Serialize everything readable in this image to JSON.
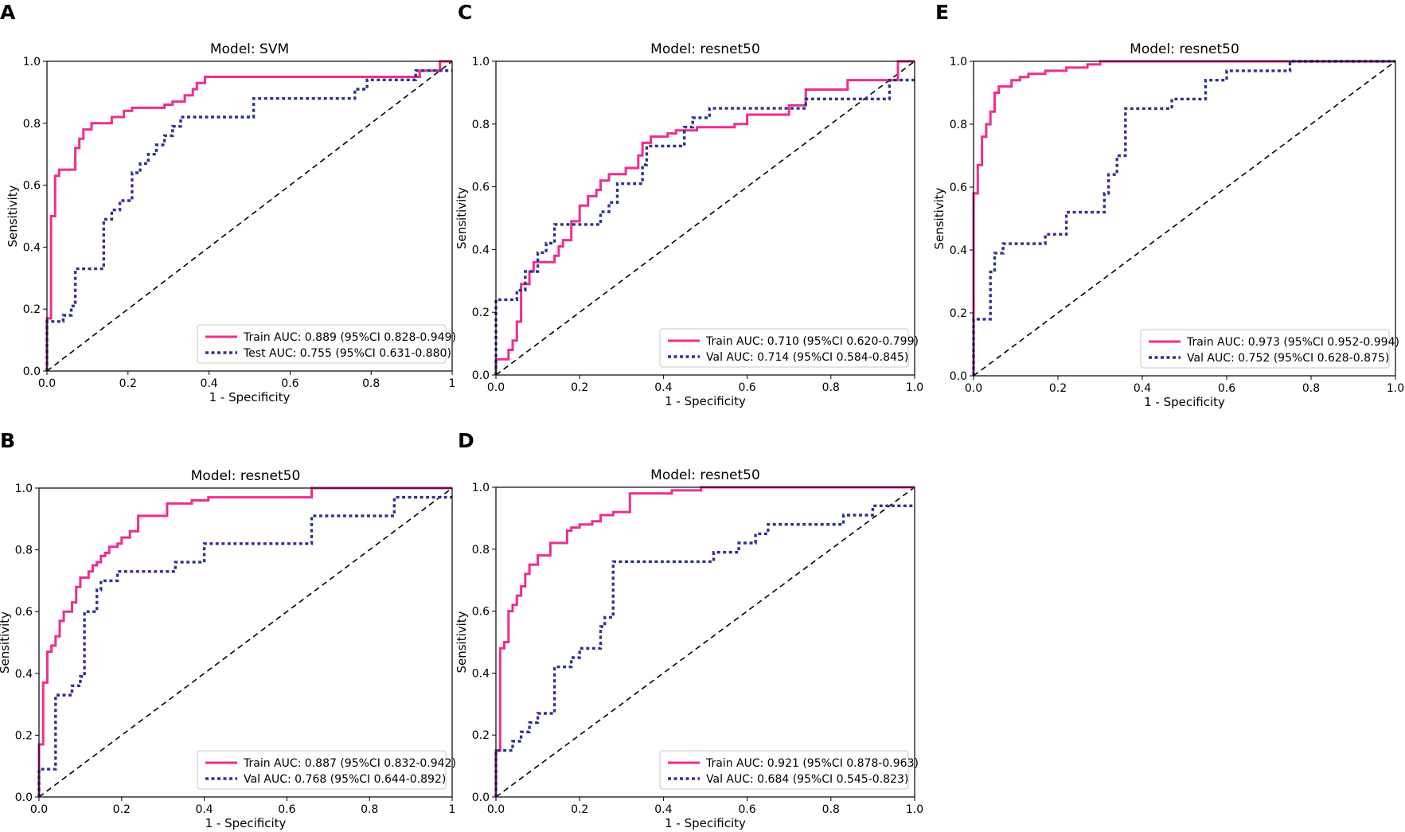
{
  "figure": {
    "panel_count": 5
  },
  "chart_data": [
    {
      "panel": "A",
      "type": "line",
      "title": "Model: SVM",
      "xlabel": "1 - Specificity",
      "ylabel": "Sensitivity",
      "xlim": [
        0,
        1
      ],
      "ylim": [
        0,
        1
      ],
      "xticks": [
        "0.0",
        "0.2",
        "0.4",
        "0.6",
        "0.8",
        "1"
      ],
      "yticks": [
        "0.0",
        "0.2",
        "0.4",
        "0.6",
        "0.8",
        "1.0"
      ],
      "legend_position": "lower-right",
      "series": [
        {
          "name": "Train AUC: 0.889 (95%CI 0.828-0.949)",
          "style": "solid",
          "color": "#ee2e8f",
          "x": [
            0,
            0,
            0.01,
            0.01,
            0.02,
            0.02,
            0.03,
            0.03,
            0.07,
            0.07,
            0.08,
            0.08,
            0.09,
            0.09,
            0.11,
            0.11,
            0.16,
            0.16,
            0.19,
            0.19,
            0.21,
            0.21,
            0.29,
            0.29,
            0.31,
            0.31,
            0.34,
            0.34,
            0.36,
            0.36,
            0.37,
            0.37,
            0.39,
            0.39,
            0.92,
            0.92,
            0.97,
            0.97,
            1
          ],
          "y": [
            0,
            0.17,
            0.17,
            0.5,
            0.5,
            0.63,
            0.63,
            0.65,
            0.65,
            0.72,
            0.72,
            0.75,
            0.75,
            0.78,
            0.78,
            0.8,
            0.8,
            0.82,
            0.82,
            0.84,
            0.84,
            0.85,
            0.85,
            0.86,
            0.86,
            0.87,
            0.87,
            0.89,
            0.89,
            0.91,
            0.91,
            0.93,
            0.93,
            0.95,
            0.95,
            0.97,
            0.97,
            1,
            1
          ]
        },
        {
          "name": "Test AUC: 0.755 (95%CI 0.631-0.880)",
          "style": "dotted",
          "color": "#2e3589",
          "x": [
            0,
            0,
            0.04,
            0.04,
            0.06,
            0.06,
            0.07,
            0.07,
            0.14,
            0.14,
            0.16,
            0.16,
            0.18,
            0.18,
            0.21,
            0.21,
            0.23,
            0.23,
            0.25,
            0.25,
            0.27,
            0.27,
            0.29,
            0.29,
            0.31,
            0.31,
            0.33,
            0.33,
            0.51,
            0.51,
            0.76,
            0.76,
            0.79,
            0.79,
            0.91,
            0.91,
            0.93,
            0.93,
            1
          ],
          "y": [
            0,
            0.16,
            0.16,
            0.18,
            0.18,
            0.21,
            0.21,
            0.33,
            0.33,
            0.49,
            0.49,
            0.52,
            0.52,
            0.55,
            0.55,
            0.64,
            0.64,
            0.67,
            0.67,
            0.7,
            0.7,
            0.73,
            0.73,
            0.76,
            0.76,
            0.79,
            0.79,
            0.82,
            0.82,
            0.88,
            0.88,
            0.91,
            0.91,
            0.94,
            0.94,
            0.97,
            0.97,
            0.97,
            0.97
          ]
        }
      ]
    },
    {
      "panel": "B",
      "type": "line",
      "title": "Model: resnet50",
      "xlabel": "1 - Specificity",
      "ylabel": "Sensitivity",
      "xlim": [
        0,
        1
      ],
      "ylim": [
        0,
        1
      ],
      "xticks": [
        "0.0",
        "0.2",
        "0.4",
        "0.6",
        "0.8",
        "1"
      ],
      "yticks": [
        "0.0",
        "0.2",
        "0.4",
        "0.6",
        "0.8",
        "1.0"
      ],
      "legend_position": "lower-right",
      "series": [
        {
          "name": "Train AUC: 0.887 (95%CI 0.832-0.942)",
          "style": "solid",
          "color": "#ee2e8f",
          "x": [
            0,
            0,
            0.01,
            0.01,
            0.02,
            0.02,
            0.03,
            0.03,
            0.04,
            0.04,
            0.05,
            0.05,
            0.06,
            0.06,
            0.08,
            0.08,
            0.09,
            0.09,
            0.1,
            0.1,
            0.12,
            0.12,
            0.13,
            0.13,
            0.14,
            0.14,
            0.15,
            0.15,
            0.16,
            0.16,
            0.17,
            0.17,
            0.19,
            0.19,
            0.2,
            0.2,
            0.22,
            0.22,
            0.24,
            0.24,
            0.31,
            0.31,
            0.37,
            0.37,
            0.41,
            0.41,
            0.66,
            0.66,
            0.87,
            0.87,
            1
          ],
          "y": [
            0,
            0.17,
            0.17,
            0.37,
            0.37,
            0.47,
            0.47,
            0.49,
            0.49,
            0.52,
            0.52,
            0.57,
            0.57,
            0.6,
            0.6,
            0.63,
            0.63,
            0.68,
            0.68,
            0.71,
            0.71,
            0.73,
            0.73,
            0.75,
            0.75,
            0.76,
            0.76,
            0.78,
            0.78,
            0.79,
            0.79,
            0.81,
            0.81,
            0.82,
            0.82,
            0.84,
            0.84,
            0.86,
            0.86,
            0.91,
            0.91,
            0.95,
            0.95,
            0.96,
            0.96,
            0.97,
            0.97,
            1,
            1,
            1,
            1
          ]
        },
        {
          "name": "Val AUC: 0.768 (95%CI 0.644-0.892)",
          "style": "dotted",
          "color": "#2e3589",
          "x": [
            0,
            0,
            0.04,
            0.04,
            0.08,
            0.08,
            0.1,
            0.1,
            0.11,
            0.11,
            0.14,
            0.14,
            0.15,
            0.15,
            0.19,
            0.19,
            0.33,
            0.33,
            0.4,
            0.4,
            0.66,
            0.66,
            0.86,
            0.86,
            1
          ],
          "y": [
            0,
            0.09,
            0.09,
            0.33,
            0.33,
            0.36,
            0.36,
            0.39,
            0.39,
            0.6,
            0.6,
            0.67,
            0.67,
            0.7,
            0.7,
            0.73,
            0.73,
            0.76,
            0.76,
            0.82,
            0.82,
            0.91,
            0.91,
            0.97,
            0.97
          ]
        }
      ]
    },
    {
      "panel": "C",
      "type": "line",
      "title": "Model: resnet50",
      "xlabel": "1 - Specificity",
      "ylabel": "Sensitivity",
      "xlim": [
        0,
        1
      ],
      "ylim": [
        0,
        1
      ],
      "xticks": [
        "0.0",
        "0.2",
        "0.4",
        "0.6",
        "0.8",
        "1.0"
      ],
      "yticks": [
        "0.0",
        "0.2",
        "0.4",
        "0.6",
        "0.8",
        "1.0"
      ],
      "legend_position": "lower-right",
      "series": [
        {
          "name": "Train AUC: 0.710 (95%CI 0.620-0.799)",
          "style": "solid",
          "color": "#ee2e8f",
          "x": [
            0,
            0,
            0.03,
            0.03,
            0.04,
            0.04,
            0.05,
            0.05,
            0.06,
            0.06,
            0.08,
            0.08,
            0.09,
            0.09,
            0.14,
            0.14,
            0.15,
            0.15,
            0.16,
            0.16,
            0.18,
            0.18,
            0.2,
            0.2,
            0.22,
            0.22,
            0.24,
            0.24,
            0.25,
            0.25,
            0.27,
            0.27,
            0.31,
            0.31,
            0.34,
            0.34,
            0.35,
            0.35,
            0.37,
            0.37,
            0.41,
            0.41,
            0.43,
            0.43,
            0.48,
            0.48,
            0.57,
            0.57,
            0.6,
            0.6,
            0.7,
            0.7,
            0.74,
            0.74,
            0.84,
            0.84,
            0.96,
            0.96,
            1
          ],
          "y": [
            0,
            0.05,
            0.05,
            0.08,
            0.08,
            0.11,
            0.11,
            0.17,
            0.17,
            0.29,
            0.29,
            0.33,
            0.33,
            0.36,
            0.36,
            0.38,
            0.38,
            0.41,
            0.41,
            0.43,
            0.43,
            0.49,
            0.49,
            0.54,
            0.54,
            0.57,
            0.57,
            0.59,
            0.59,
            0.62,
            0.62,
            0.64,
            0.64,
            0.66,
            0.66,
            0.7,
            0.7,
            0.74,
            0.74,
            0.76,
            0.76,
            0.77,
            0.77,
            0.78,
            0.78,
            0.79,
            0.79,
            0.8,
            0.8,
            0.83,
            0.83,
            0.86,
            0.86,
            0.91,
            0.91,
            0.94,
            0.94,
            1,
            1
          ]
        },
        {
          "name": "Val AUC: 0.714 (95%CI 0.584-0.845)",
          "style": "dotted",
          "color": "#2e3589",
          "x": [
            0,
            0,
            0.05,
            0.05,
            0.07,
            0.07,
            0.1,
            0.1,
            0.12,
            0.12,
            0.14,
            0.14,
            0.25,
            0.25,
            0.27,
            0.27,
            0.29,
            0.29,
            0.35,
            0.35,
            0.36,
            0.36,
            0.45,
            0.45,
            0.47,
            0.47,
            0.51,
            0.51,
            0.74,
            0.74,
            0.94,
            0.94,
            1
          ],
          "y": [
            0,
            0.24,
            0.24,
            0.27,
            0.27,
            0.33,
            0.33,
            0.39,
            0.39,
            0.42,
            0.42,
            0.48,
            0.48,
            0.52,
            0.52,
            0.55,
            0.55,
            0.61,
            0.61,
            0.67,
            0.67,
            0.73,
            0.73,
            0.79,
            0.79,
            0.82,
            0.82,
            0.85,
            0.85,
            0.88,
            0.88,
            0.94,
            0.94
          ]
        }
      ]
    },
    {
      "panel": "D",
      "type": "line",
      "title": "Model: resnet50",
      "xlabel": "1 - Specificity",
      "ylabel": "Sensitivity",
      "xlim": [
        0,
        1
      ],
      "ylim": [
        0,
        1
      ],
      "xticks": [
        "0.0",
        "0.2",
        "0.4",
        "0.6",
        "0.8",
        "1.0"
      ],
      "yticks": [
        "0.0",
        "0.2",
        "0.4",
        "0.6",
        "0.8",
        "1.0"
      ],
      "legend_position": "lower-right",
      "series": [
        {
          "name": "Train AUC: 0.921 (95%CI 0.878-0.963)",
          "style": "solid",
          "color": "#ee2e8f",
          "x": [
            0,
            0,
            0.01,
            0.01,
            0.02,
            0.02,
            0.03,
            0.03,
            0.04,
            0.04,
            0.05,
            0.05,
            0.06,
            0.06,
            0.07,
            0.07,
            0.08,
            0.08,
            0.1,
            0.1,
            0.11,
            0.11,
            0.13,
            0.13,
            0.17,
            0.17,
            0.18,
            0.18,
            0.2,
            0.2,
            0.23,
            0.23,
            0.25,
            0.25,
            0.28,
            0.28,
            0.32,
            0.32,
            0.42,
            0.42,
            0.49,
            0.49,
            1
          ],
          "y": [
            0,
            0.15,
            0.15,
            0.48,
            0.48,
            0.5,
            0.5,
            0.6,
            0.6,
            0.62,
            0.62,
            0.65,
            0.65,
            0.68,
            0.68,
            0.72,
            0.72,
            0.75,
            0.75,
            0.78,
            0.78,
            0.78,
            0.78,
            0.82,
            0.82,
            0.86,
            0.86,
            0.87,
            0.87,
            0.88,
            0.88,
            0.89,
            0.89,
            0.91,
            0.91,
            0.92,
            0.92,
            0.98,
            0.98,
            0.99,
            0.99,
            1,
            1
          ]
        },
        {
          "name": "Val AUC: 0.684 (95%CI 0.545-0.823)",
          "style": "dotted",
          "color": "#2e3589",
          "x": [
            0,
            0,
            0.04,
            0.04,
            0.06,
            0.06,
            0.08,
            0.08,
            0.1,
            0.1,
            0.14,
            0.14,
            0.18,
            0.18,
            0.2,
            0.2,
            0.25,
            0.25,
            0.26,
            0.26,
            0.28,
            0.28,
            0.52,
            0.52,
            0.58,
            0.58,
            0.62,
            0.62,
            0.65,
            0.65,
            0.83,
            0.83,
            0.9,
            0.9,
            1
          ],
          "y": [
            0,
            0.15,
            0.15,
            0.18,
            0.18,
            0.21,
            0.21,
            0.24,
            0.24,
            0.27,
            0.27,
            0.42,
            0.42,
            0.45,
            0.45,
            0.48,
            0.48,
            0.55,
            0.55,
            0.58,
            0.58,
            0.76,
            0.76,
            0.79,
            0.79,
            0.82,
            0.82,
            0.85,
            0.85,
            0.88,
            0.88,
            0.91,
            0.91,
            0.94,
            0.94
          ]
        }
      ]
    },
    {
      "panel": "E",
      "type": "line",
      "title": "Model: resnet50",
      "xlabel": "1 - Specificity",
      "ylabel": "Sensitivity",
      "xlim": [
        0,
        1
      ],
      "ylim": [
        0,
        1
      ],
      "xticks": [
        "0.0",
        "0.2",
        "0.4",
        "0.6",
        "0.8",
        "1.0"
      ],
      "yticks": [
        "0.0",
        "0.2",
        "0.4",
        "0.6",
        "0.8",
        "1.0"
      ],
      "legend_position": "lower-right",
      "series": [
        {
          "name": "Train AUC: 0.973 (95%CI 0.952-0.994)",
          "style": "solid",
          "color": "#ee2e8f",
          "x": [
            0,
            0,
            0.01,
            0.01,
            0.02,
            0.02,
            0.03,
            0.03,
            0.04,
            0.04,
            0.05,
            0.05,
            0.06,
            0.06,
            0.09,
            0.09,
            0.11,
            0.11,
            0.13,
            0.13,
            0.17,
            0.17,
            0.22,
            0.22,
            0.27,
            0.27,
            0.3,
            0.3,
            1
          ],
          "y": [
            0,
            0.58,
            0.58,
            0.67,
            0.67,
            0.76,
            0.76,
            0.8,
            0.8,
            0.84,
            0.84,
            0.9,
            0.9,
            0.92,
            0.92,
            0.94,
            0.94,
            0.95,
            0.95,
            0.96,
            0.96,
            0.97,
            0.97,
            0.98,
            0.98,
            0.99,
            0.99,
            1,
            1
          ]
        },
        {
          "name": "Val AUC: 0.752 (95%CI 0.628-0.875)",
          "style": "dotted",
          "color": "#2e3589",
          "x": [
            0,
            0,
            0.04,
            0.04,
            0.05,
            0.05,
            0.07,
            0.07,
            0.17,
            0.17,
            0.22,
            0.22,
            0.31,
            0.31,
            0.32,
            0.32,
            0.34,
            0.34,
            0.36,
            0.36,
            0.47,
            0.47,
            0.55,
            0.55,
            0.6,
            0.6,
            0.75,
            0.75,
            0.92,
            0.92,
            1
          ],
          "y": [
            0,
            0.18,
            0.18,
            0.33,
            0.33,
            0.39,
            0.39,
            0.42,
            0.42,
            0.45,
            0.45,
            0.52,
            0.52,
            0.58,
            0.58,
            0.64,
            0.64,
            0.7,
            0.7,
            0.85,
            0.85,
            0.88,
            0.88,
            0.94,
            0.94,
            0.97,
            0.97,
            1,
            1,
            1,
            1
          ]
        }
      ]
    }
  ]
}
